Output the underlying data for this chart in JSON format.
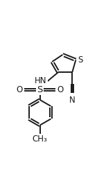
{
  "background_color": "#ffffff",
  "line_color": "#1a1a1a",
  "line_width": 1.4,
  "font_size": 8.5,
  "figsize": [
    1.53,
    2.74
  ],
  "dpi": 100,
  "xlim": [
    -0.1,
    1.1
  ],
  "ylim": [
    -0.05,
    1.05
  ]
}
